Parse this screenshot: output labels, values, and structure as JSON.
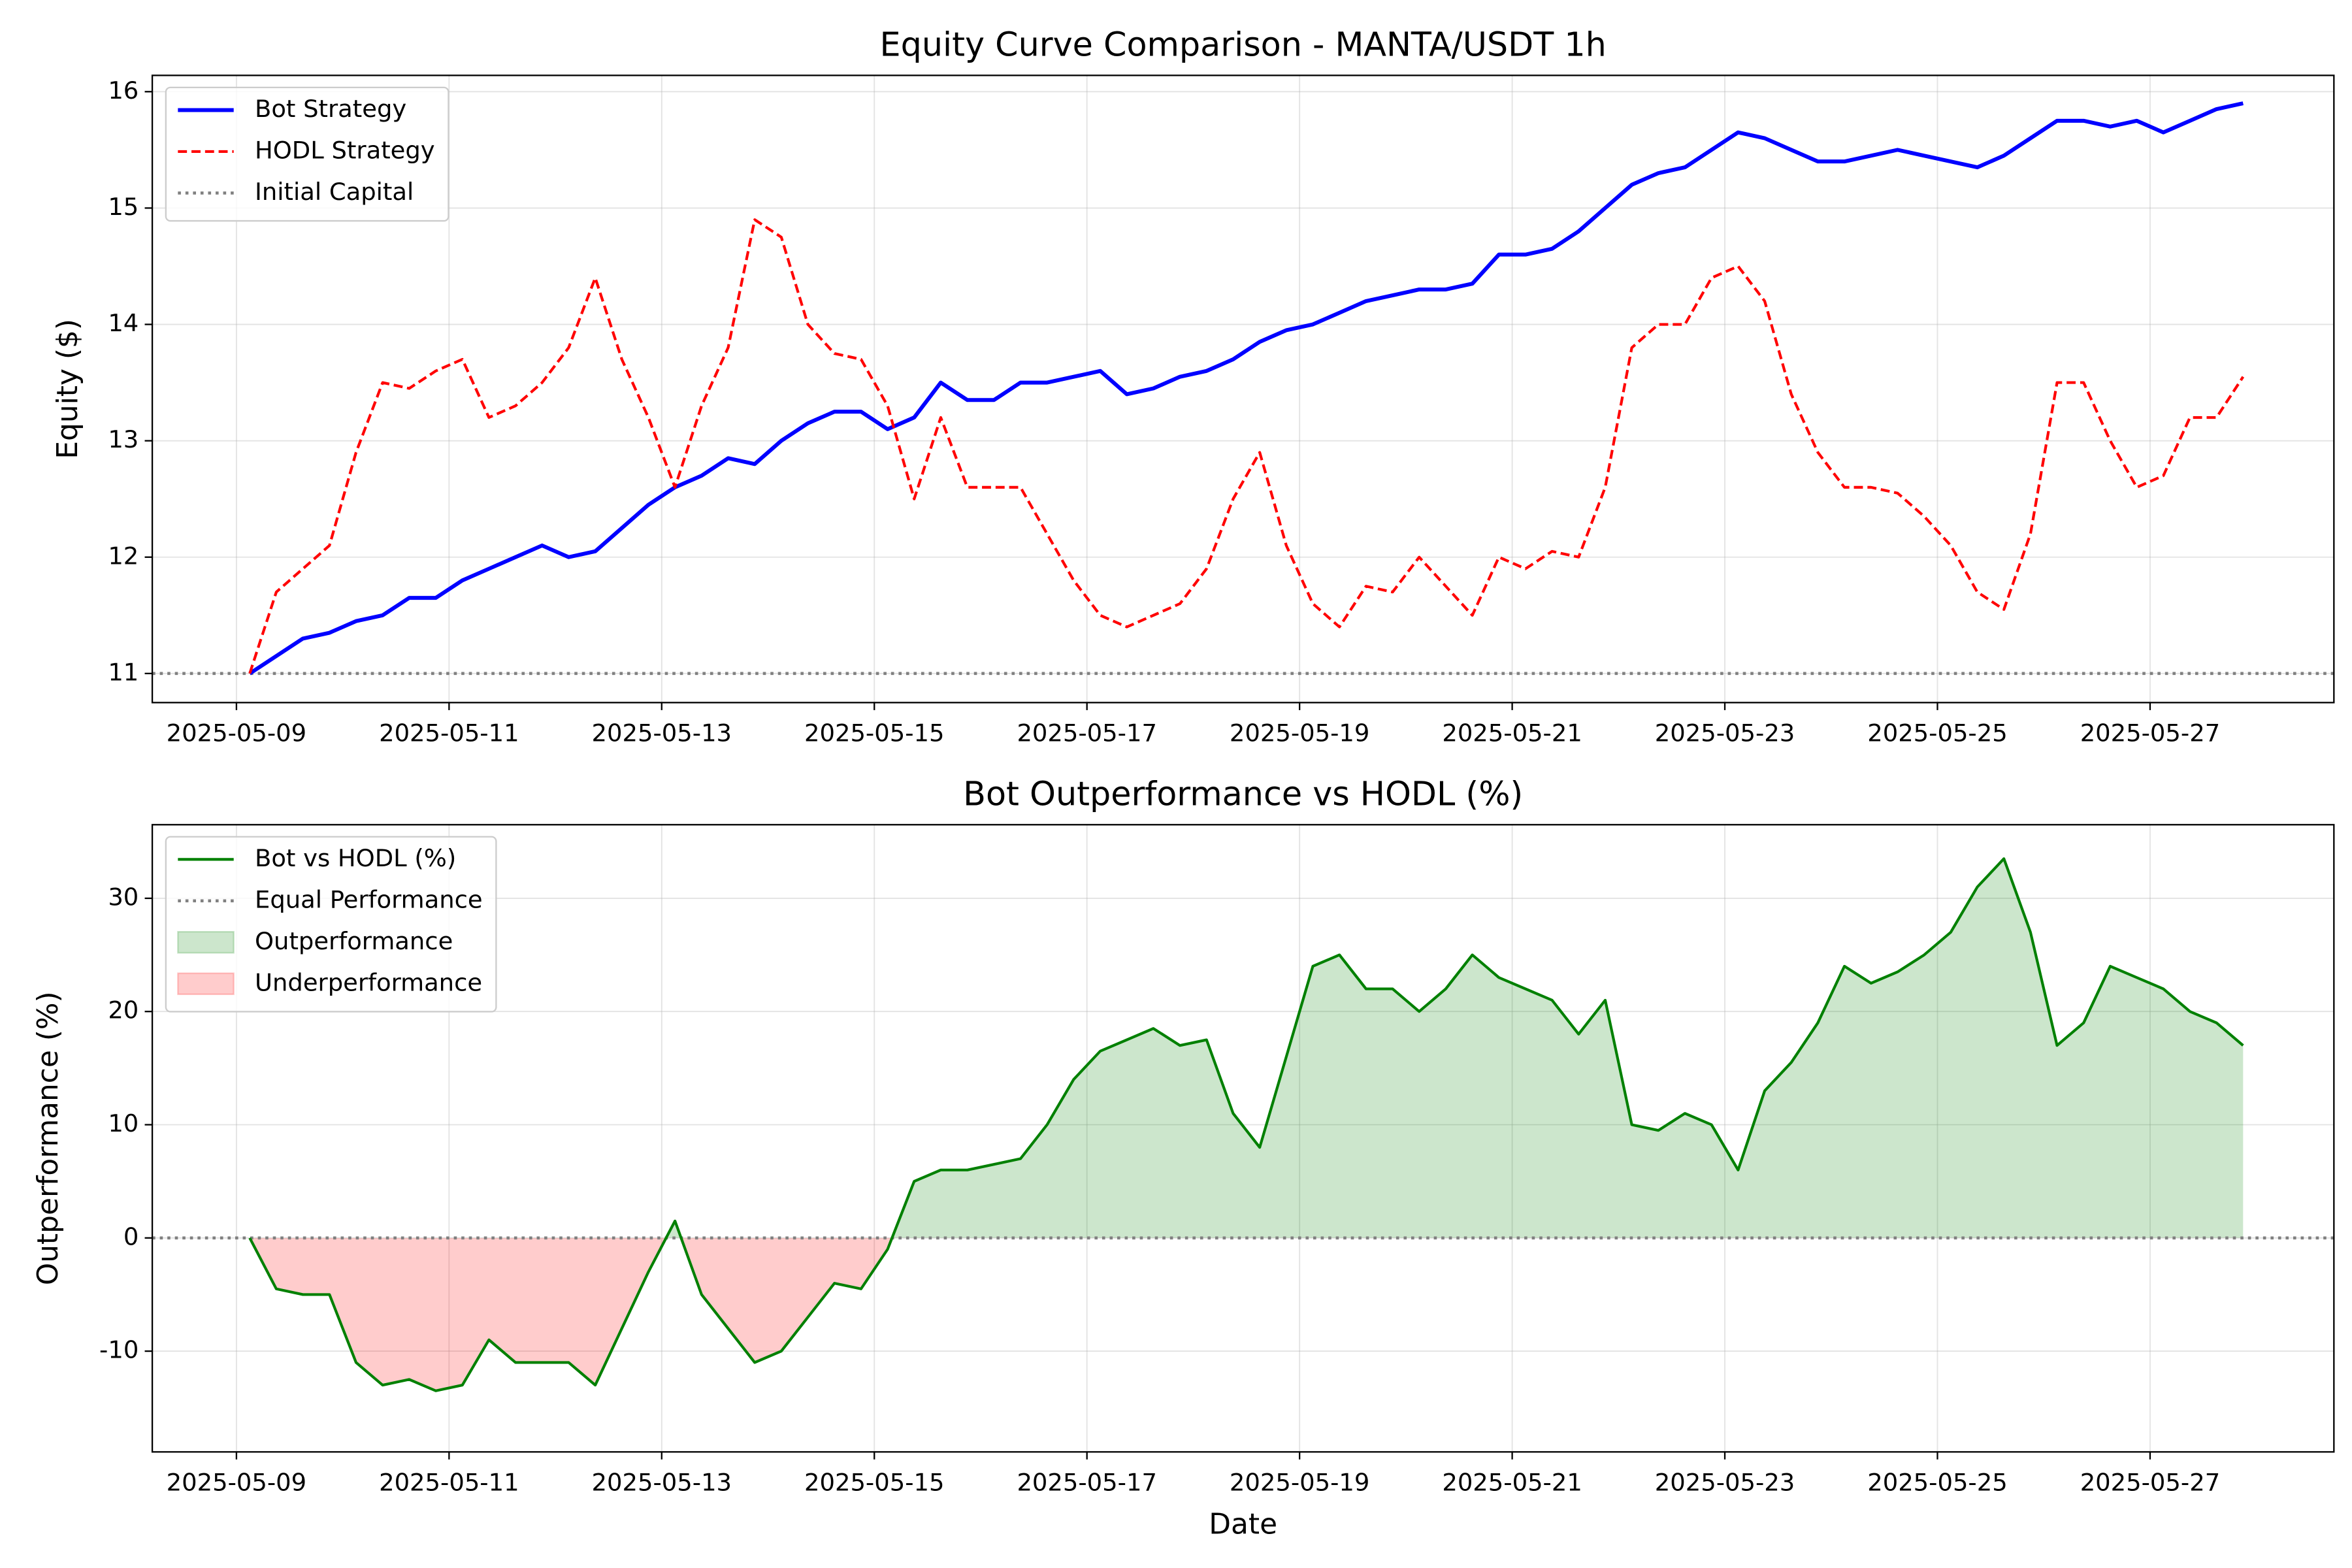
{
  "chart_data": [
    {
      "type": "line",
      "title": "Equity Curve Comparison - MANTA/USDT 1h",
      "y_label": "Equity ($)",
      "x": [
        "2025-05-09 03:00",
        "2025-05-09 09:00",
        "2025-05-09 15:00",
        "2025-05-09 21:00",
        "2025-05-10 03:00",
        "2025-05-10 09:00",
        "2025-05-10 15:00",
        "2025-05-10 21:00",
        "2025-05-11 03:00",
        "2025-05-11 09:00",
        "2025-05-11 15:00",
        "2025-05-11 21:00",
        "2025-05-12 03:00",
        "2025-05-12 09:00",
        "2025-05-12 15:00",
        "2025-05-12 21:00",
        "2025-05-13 03:00",
        "2025-05-13 09:00",
        "2025-05-13 15:00",
        "2025-05-13 21:00",
        "2025-05-14 03:00",
        "2025-05-14 09:00",
        "2025-05-14 15:00",
        "2025-05-14 21:00",
        "2025-05-15 03:00",
        "2025-05-15 09:00",
        "2025-05-15 15:00",
        "2025-05-15 21:00",
        "2025-05-16 03:00",
        "2025-05-16 09:00",
        "2025-05-16 15:00",
        "2025-05-16 21:00",
        "2025-05-17 03:00",
        "2025-05-17 09:00",
        "2025-05-17 15:00",
        "2025-05-17 21:00",
        "2025-05-18 03:00",
        "2025-05-18 09:00",
        "2025-05-18 15:00",
        "2025-05-18 21:00",
        "2025-05-19 03:00",
        "2025-05-19 09:00",
        "2025-05-19 15:00",
        "2025-05-19 21:00",
        "2025-05-20 03:00",
        "2025-05-20 09:00",
        "2025-05-20 15:00",
        "2025-05-20 21:00",
        "2025-05-21 03:00",
        "2025-05-21 09:00",
        "2025-05-21 15:00",
        "2025-05-21 21:00",
        "2025-05-22 03:00",
        "2025-05-22 09:00",
        "2025-05-22 15:00",
        "2025-05-22 21:00",
        "2025-05-23 03:00",
        "2025-05-23 09:00",
        "2025-05-23 15:00",
        "2025-05-23 21:00",
        "2025-05-24 03:00",
        "2025-05-24 09:00",
        "2025-05-24 15:00",
        "2025-05-24 21:00",
        "2025-05-25 03:00",
        "2025-05-25 09:00",
        "2025-05-25 15:00",
        "2025-05-25 21:00",
        "2025-05-26 03:00",
        "2025-05-26 09:00",
        "2025-05-26 15:00",
        "2025-05-26 21:00",
        "2025-05-27 03:00",
        "2025-05-27 09:00",
        "2025-05-27 15:00",
        "2025-05-27 21:00"
      ],
      "series": [
        {
          "name": "Bot Strategy",
          "color": "#0000ff",
          "linestyle": "solid",
          "values": [
            11.0,
            11.15,
            11.3,
            11.35,
            11.45,
            11.5,
            11.65,
            11.65,
            11.8,
            11.9,
            12.0,
            12.1,
            12.0,
            12.05,
            12.25,
            12.45,
            12.6,
            12.7,
            12.85,
            12.8,
            13.0,
            13.15,
            13.25,
            13.25,
            13.1,
            13.2,
            13.5,
            13.35,
            13.35,
            13.5,
            13.5,
            13.55,
            13.6,
            13.4,
            13.45,
            13.55,
            13.6,
            13.7,
            13.85,
            13.95,
            14.0,
            14.1,
            14.2,
            14.25,
            14.3,
            14.3,
            14.35,
            14.6,
            14.6,
            14.65,
            14.8,
            15.0,
            15.2,
            15.3,
            15.35,
            15.5,
            15.65,
            15.6,
            15.5,
            15.4,
            15.4,
            15.45,
            15.5,
            15.45,
            15.4,
            15.35,
            15.45,
            15.6,
            15.75,
            15.75,
            15.7,
            15.75,
            15.65,
            15.75,
            15.85,
            15.9
          ]
        },
        {
          "name": "HODL Strategy",
          "color": "#ff0000",
          "linestyle": "dashed",
          "values": [
            11.0,
            11.7,
            11.9,
            12.1,
            12.9,
            13.5,
            13.45,
            13.6,
            13.7,
            13.2,
            13.3,
            13.5,
            13.8,
            14.4,
            13.7,
            13.2,
            12.6,
            13.3,
            13.8,
            14.9,
            14.75,
            14.0,
            13.75,
            13.7,
            13.3,
            12.5,
            13.2,
            12.6,
            12.6,
            12.6,
            12.2,
            11.8,
            11.5,
            11.4,
            11.5,
            11.6,
            11.9,
            12.5,
            12.9,
            12.1,
            11.6,
            11.4,
            11.75,
            11.7,
            12.0,
            11.75,
            11.5,
            12.0,
            11.9,
            12.05,
            12.0,
            12.6,
            13.8,
            14.0,
            14.0,
            14.4,
            14.5,
            14.2,
            13.4,
            12.9,
            12.6,
            12.6,
            12.55,
            12.35,
            12.1,
            11.7,
            11.55,
            12.2,
            13.5,
            13.5,
            13.0,
            12.6,
            12.7,
            13.2,
            13.2,
            13.55
          ]
        }
      ],
      "reference_line": {
        "name": "Initial Capital",
        "value": 11,
        "color": "#808080",
        "linestyle": "dotted"
      },
      "xlim": [
        "2025-05-08 05:00",
        "2025-05-28 17:30"
      ],
      "xticks": [
        "2025-05-09",
        "2025-05-11",
        "2025-05-13",
        "2025-05-15",
        "2025-05-17",
        "2025-05-19",
        "2025-05-21",
        "2025-05-23",
        "2025-05-25",
        "2025-05-27"
      ],
      "ylim": [
        10.75,
        16.14
      ],
      "yticks": [
        11,
        12,
        13,
        14,
        15,
        16
      ],
      "grid": true,
      "legend": "upper left"
    },
    {
      "type": "line",
      "title": "Bot Outperformance vs HODL (%)",
      "x_label": "Date",
      "y_label": "Outperformance (%)",
      "x": [
        "2025-05-09 03:00",
        "2025-05-09 09:00",
        "2025-05-09 15:00",
        "2025-05-09 21:00",
        "2025-05-10 03:00",
        "2025-05-10 09:00",
        "2025-05-10 15:00",
        "2025-05-10 21:00",
        "2025-05-11 03:00",
        "2025-05-11 09:00",
        "2025-05-11 15:00",
        "2025-05-11 21:00",
        "2025-05-12 03:00",
        "2025-05-12 09:00",
        "2025-05-12 15:00",
        "2025-05-12 21:00",
        "2025-05-13 03:00",
        "2025-05-13 09:00",
        "2025-05-13 15:00",
        "2025-05-13 21:00",
        "2025-05-14 03:00",
        "2025-05-14 09:00",
        "2025-05-14 15:00",
        "2025-05-14 21:00",
        "2025-05-15 03:00",
        "2025-05-15 09:00",
        "2025-05-15 15:00",
        "2025-05-15 21:00",
        "2025-05-16 03:00",
        "2025-05-16 09:00",
        "2025-05-16 15:00",
        "2025-05-16 21:00",
        "2025-05-17 03:00",
        "2025-05-17 09:00",
        "2025-05-17 15:00",
        "2025-05-17 21:00",
        "2025-05-18 03:00",
        "2025-05-18 09:00",
        "2025-05-18 15:00",
        "2025-05-18 21:00",
        "2025-05-19 03:00",
        "2025-05-19 09:00",
        "2025-05-19 15:00",
        "2025-05-19 21:00",
        "2025-05-20 03:00",
        "2025-05-20 09:00",
        "2025-05-20 15:00",
        "2025-05-20 21:00",
        "2025-05-21 03:00",
        "2025-05-21 09:00",
        "2025-05-21 15:00",
        "2025-05-21 21:00",
        "2025-05-22 03:00",
        "2025-05-22 09:00",
        "2025-05-22 15:00",
        "2025-05-22 21:00",
        "2025-05-23 03:00",
        "2025-05-23 09:00",
        "2025-05-23 15:00",
        "2025-05-23 21:00",
        "2025-05-24 03:00",
        "2025-05-24 09:00",
        "2025-05-24 15:00",
        "2025-05-24 21:00",
        "2025-05-25 03:00",
        "2025-05-25 09:00",
        "2025-05-25 15:00",
        "2025-05-25 21:00",
        "2025-05-26 03:00",
        "2025-05-26 09:00",
        "2025-05-26 15:00",
        "2025-05-26 21:00",
        "2025-05-27 03:00",
        "2025-05-27 09:00",
        "2025-05-27 15:00",
        "2025-05-27 21:00"
      ],
      "series": [
        {
          "name": "Bot vs HODL (%)",
          "color": "#008000",
          "linestyle": "solid",
          "values": [
            0,
            -4.5,
            -5,
            -5,
            -11,
            -13,
            -12.5,
            -13.5,
            -13,
            -9,
            -11,
            -11,
            -11,
            -13,
            -8,
            -3,
            1.5,
            -5,
            -8,
            -11,
            -10,
            -7,
            -4,
            -4.5,
            -1,
            5,
            6,
            6,
            6.5,
            7,
            10,
            14,
            16.5,
            17.5,
            18.5,
            17,
            17.5,
            11,
            8,
            16,
            24,
            25,
            22,
            22,
            20,
            22,
            25,
            23,
            22,
            21,
            18,
            21,
            10,
            9.5,
            11,
            10,
            6,
            13,
            15.5,
            19,
            24,
            22.5,
            23.5,
            25,
            27,
            31,
            33.5,
            27,
            17,
            19,
            24,
            23,
            22,
            20,
            19,
            17
          ]
        }
      ],
      "reference_line": {
        "name": "Equal Performance",
        "value": 0,
        "color": "#808080",
        "linestyle": "dotted"
      },
      "fills": [
        {
          "name": "Outperformance",
          "color": "#008000",
          "alpha": 0.2,
          "side": "above"
        },
        {
          "name": "Underperformance",
          "color": "#ff0000",
          "alpha": 0.2,
          "side": "below"
        }
      ],
      "xlim": [
        "2025-05-08 05:00",
        "2025-05-28 17:30"
      ],
      "xticks": [
        "2025-05-09",
        "2025-05-11",
        "2025-05-13",
        "2025-05-15",
        "2025-05-17",
        "2025-05-19",
        "2025-05-21",
        "2025-05-23",
        "2025-05-25",
        "2025-05-27"
      ],
      "ylim": [
        -18.9,
        36.5
      ],
      "yticks": [
        -10,
        0,
        10,
        20,
        30
      ],
      "grid": true,
      "legend": "upper left"
    }
  ]
}
